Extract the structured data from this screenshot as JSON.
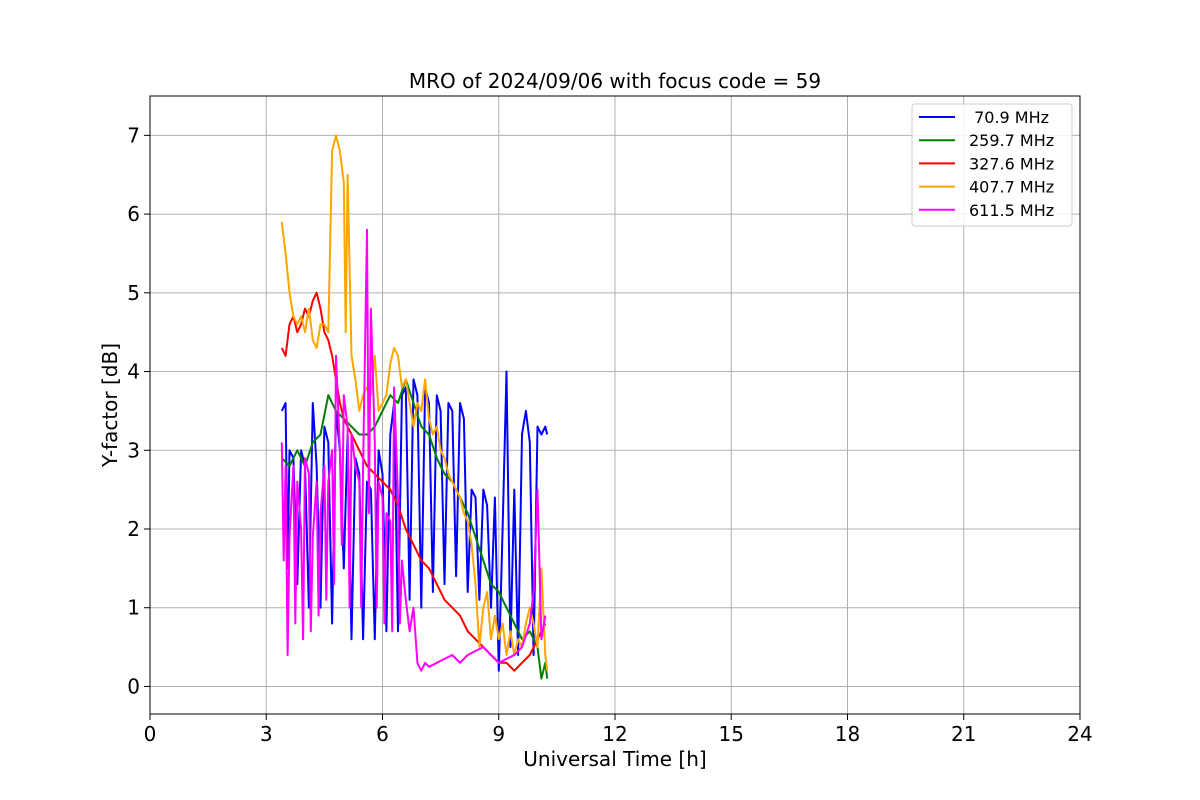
{
  "chart_data": {
    "type": "line",
    "title": "MRO of 2024/09/06 with focus code = 59",
    "xlabel": "Universal Time [h]",
    "ylabel": "Y-factor [dB]",
    "xlim": [
      0,
      24
    ],
    "ylim": [
      -0.35,
      7.5
    ],
    "xticks": [
      0,
      3,
      6,
      9,
      12,
      15,
      18,
      21,
      24
    ],
    "yticks": [
      0,
      1,
      2,
      3,
      4,
      5,
      6,
      7
    ],
    "grid": true,
    "legend_position": "top-right",
    "series": [
      {
        "name": " 70.9 MHz",
        "color": "#0000ff",
        "x": [
          3.4,
          3.5,
          3.55,
          3.6,
          3.7,
          3.8,
          3.9,
          4.0,
          4.1,
          4.2,
          4.3,
          4.4,
          4.5,
          4.6,
          4.7,
          4.8,
          4.9,
          5.0,
          5.1,
          5.2,
          5.3,
          5.4,
          5.5,
          5.6,
          5.7,
          5.8,
          5.9,
          6.0,
          6.1,
          6.2,
          6.3,
          6.4,
          6.5,
          6.6,
          6.7,
          6.8,
          6.9,
          7.0,
          7.1,
          7.2,
          7.3,
          7.4,
          7.5,
          7.6,
          7.7,
          7.8,
          7.9,
          8.0,
          8.1,
          8.2,
          8.3,
          8.4,
          8.5,
          8.6,
          8.7,
          8.8,
          8.9,
          9.0,
          9.1,
          9.2,
          9.3,
          9.4,
          9.5,
          9.6,
          9.7,
          9.8,
          9.9,
          10.0,
          10.1,
          10.2,
          10.25
        ],
        "y": [
          3.5,
          3.6,
          1.5,
          3.0,
          2.9,
          1.3,
          3.0,
          2.8,
          1.0,
          3.6,
          2.8,
          1.0,
          3.3,
          3.1,
          0.8,
          3.5,
          3.0,
          1.5,
          3.2,
          0.6,
          2.9,
          2.7,
          0.6,
          2.6,
          2.5,
          0.6,
          3.0,
          2.7,
          0.7,
          3.2,
          3.6,
          0.7,
          3.7,
          3.8,
          1.1,
          3.9,
          3.7,
          1.0,
          3.8,
          3.6,
          1.2,
          3.7,
          3.5,
          1.3,
          3.6,
          3.5,
          1.4,
          3.6,
          3.4,
          1.2,
          2.5,
          2.4,
          1.1,
          2.5,
          2.3,
          1.0,
          2.4,
          0.2,
          2.0,
          4.0,
          0.5,
          2.5,
          0.4,
          3.2,
          3.5,
          3.1,
          0.4,
          3.3,
          3.2,
          3.3,
          3.2
        ]
      },
      {
        "name": "259.7 MHz",
        "color": "#008000",
        "x": [
          3.4,
          3.6,
          3.8,
          4.0,
          4.2,
          4.4,
          4.6,
          4.8,
          5.0,
          5.2,
          5.4,
          5.6,
          5.8,
          6.0,
          6.2,
          6.4,
          6.6,
          6.8,
          7.0,
          7.2,
          7.4,
          7.6,
          7.8,
          8.0,
          8.2,
          8.4,
          8.6,
          8.8,
          9.0,
          9.2,
          9.4,
          9.6,
          9.8,
          10.0,
          10.1,
          10.2,
          10.25
        ],
        "y": [
          2.9,
          2.8,
          3.0,
          2.8,
          3.1,
          3.2,
          3.7,
          3.5,
          3.4,
          3.3,
          3.2,
          3.2,
          3.3,
          3.5,
          3.7,
          3.6,
          3.9,
          3.6,
          3.3,
          3.2,
          2.9,
          2.7,
          2.6,
          2.4,
          2.2,
          1.9,
          1.6,
          1.3,
          1.2,
          1.0,
          0.8,
          0.6,
          0.7,
          0.5,
          0.1,
          0.3,
          0.1
        ]
      },
      {
        "name": "327.6 MHz",
        "color": "#ff0000",
        "x": [
          3.4,
          3.5,
          3.6,
          3.7,
          3.8,
          3.9,
          4.0,
          4.1,
          4.2,
          4.3,
          4.4,
          4.5,
          4.6,
          4.7,
          4.8,
          4.9,
          5.0,
          5.2,
          5.4,
          5.6,
          5.8,
          6.0,
          6.2,
          6.4,
          6.6,
          6.8,
          7.0,
          7.2,
          7.4,
          7.6,
          7.8,
          8.0,
          8.2,
          8.4,
          8.6,
          8.8,
          9.0,
          9.2,
          9.4,
          9.6,
          9.8,
          10.0,
          10.2
        ],
        "y": [
          4.3,
          4.2,
          4.6,
          4.7,
          4.5,
          4.6,
          4.8,
          4.7,
          4.9,
          5.0,
          4.8,
          4.5,
          4.4,
          4.2,
          3.9,
          3.6,
          3.4,
          3.2,
          3.0,
          2.8,
          2.7,
          2.6,
          2.5,
          2.3,
          2.0,
          1.8,
          1.6,
          1.5,
          1.3,
          1.1,
          1.0,
          0.9,
          0.7,
          0.6,
          0.5,
          0.4,
          0.3,
          0.3,
          0.2,
          0.3,
          0.4,
          0.6,
          0.8
        ]
      },
      {
        "name": "407.7 MHz",
        "color": "#ffa500",
        "x": [
          3.4,
          3.5,
          3.6,
          3.7,
          3.8,
          3.9,
          4.0,
          4.1,
          4.2,
          4.3,
          4.4,
          4.5,
          4.6,
          4.7,
          4.8,
          4.9,
          5.0,
          5.05,
          5.1,
          5.2,
          5.3,
          5.4,
          5.5,
          5.6,
          5.7,
          5.8,
          5.9,
          6.0,
          6.1,
          6.2,
          6.3,
          6.4,
          6.5,
          6.6,
          6.7,
          6.8,
          6.9,
          7.0,
          7.1,
          7.2,
          7.3,
          7.4,
          7.5,
          7.6,
          7.7,
          7.8,
          7.9,
          8.0,
          8.1,
          8.2,
          8.3,
          8.4,
          8.5,
          8.6,
          8.7,
          8.8,
          8.9,
          9.0,
          9.1,
          9.2,
          9.3,
          9.4,
          9.5,
          9.6,
          9.7,
          9.8,
          9.9,
          10.0,
          10.1,
          10.2,
          10.25
        ],
        "y": [
          5.9,
          5.5,
          5.0,
          4.7,
          4.6,
          4.7,
          4.5,
          4.8,
          4.4,
          4.3,
          4.6,
          4.6,
          4.5,
          6.8,
          7.0,
          6.8,
          6.4,
          4.5,
          6.5,
          4.2,
          3.9,
          3.5,
          3.7,
          3.8,
          3.7,
          4.2,
          3.5,
          3.6,
          3.7,
          4.1,
          4.3,
          4.2,
          3.8,
          3.9,
          3.6,
          3.3,
          3.6,
          3.5,
          3.9,
          3.4,
          3.2,
          3.3,
          3.0,
          2.9,
          2.7,
          2.6,
          2.5,
          2.4,
          2.2,
          2.1,
          1.8,
          1.3,
          0.5,
          1.0,
          1.2,
          0.6,
          0.9,
          0.6,
          0.8,
          0.4,
          0.7,
          0.4,
          0.6,
          0.5,
          0.8,
          1.0,
          0.8,
          0.5,
          1.5,
          0.4,
          0.2
        ]
      },
      {
        "name": "611.5 MHz",
        "color": "#ff00ff",
        "x": [
          3.4,
          3.45,
          3.5,
          3.55,
          3.6,
          3.7,
          3.75,
          3.8,
          3.9,
          3.95,
          4.0,
          4.1,
          4.15,
          4.2,
          4.3,
          4.35,
          4.4,
          4.5,
          4.55,
          4.6,
          4.7,
          4.75,
          4.8,
          4.9,
          4.95,
          5.0,
          5.1,
          5.15,
          5.2,
          5.3,
          5.4,
          5.45,
          5.5,
          5.6,
          5.65,
          5.7,
          5.8,
          5.85,
          5.9,
          6.0,
          6.05,
          6.1,
          6.2,
          6.25,
          6.3,
          6.4,
          6.45,
          6.5,
          6.6,
          6.7,
          6.8,
          6.9,
          7.0,
          7.1,
          7.2,
          7.4,
          7.6,
          7.8,
          8.0,
          8.2,
          8.4,
          8.6,
          8.8,
          9.0,
          9.2,
          9.4,
          9.6,
          9.8,
          9.9,
          10.0,
          10.1,
          10.2
        ],
        "y": [
          3.1,
          1.6,
          2.8,
          0.4,
          1.9,
          2.8,
          0.8,
          2.6,
          2.0,
          0.6,
          2.9,
          2.7,
          0.7,
          1.9,
          2.6,
          0.9,
          2.2,
          2.8,
          1.1,
          2.6,
          3.0,
          1.3,
          4.2,
          3.0,
          1.8,
          3.7,
          3.3,
          1.0,
          3.2,
          2.8,
          2.6,
          1.0,
          2.8,
          5.8,
          2.2,
          4.8,
          3.1,
          1.0,
          2.6,
          2.4,
          0.8,
          2.2,
          2.1,
          0.7,
          3.8,
          2.4,
          0.8,
          1.6,
          1.1,
          0.7,
          1.0,
          0.3,
          0.2,
          0.3,
          0.25,
          0.3,
          0.35,
          0.4,
          0.3,
          0.4,
          0.45,
          0.5,
          0.4,
          0.3,
          0.35,
          0.4,
          0.5,
          0.8,
          1.2,
          2.5,
          0.6,
          0.9
        ]
      }
    ]
  }
}
